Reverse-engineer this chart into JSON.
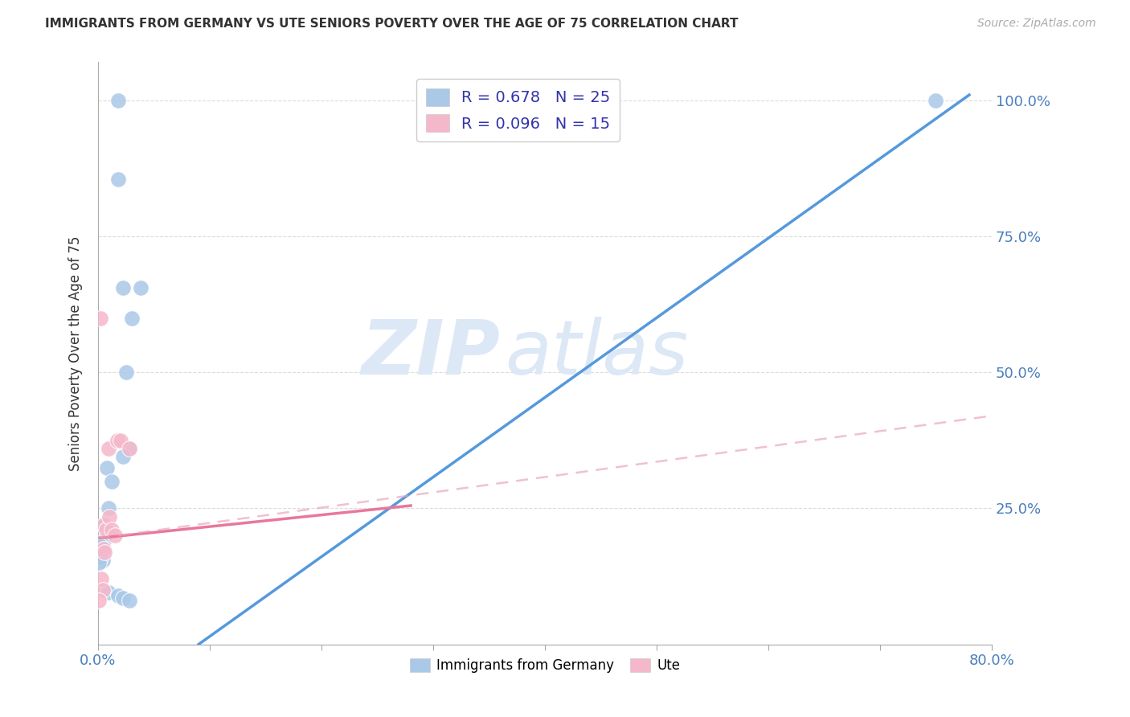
{
  "title": "IMMIGRANTS FROM GERMANY VS UTE SENIORS POVERTY OVER THE AGE OF 75 CORRELATION CHART",
  "source": "Source: ZipAtlas.com",
  "ylabel": "Seniors Poverty Over the Age of 75",
  "xlim": [
    0.0,
    0.8
  ],
  "ylim": [
    0.0,
    1.07
  ],
  "yticks_right": [
    0.25,
    0.5,
    0.75,
    1.0
  ],
  "ytick_right_labels": [
    "25.0%",
    "50.0%",
    "75.0%",
    "100.0%"
  ],
  "blue_scatter_x": [
    0.018,
    0.018,
    0.022,
    0.03,
    0.025,
    0.008,
    0.012,
    0.009,
    0.006,
    0.005,
    0.003,
    0.003,
    0.004,
    0.004,
    0.028,
    0.022,
    0.038,
    0.009,
    0.018,
    0.022,
    0.028,
    0.75,
    0.003,
    0.002,
    0.001
  ],
  "blue_scatter_y": [
    1.0,
    0.855,
    0.655,
    0.6,
    0.5,
    0.325,
    0.3,
    0.25,
    0.22,
    0.19,
    0.175,
    0.17,
    0.165,
    0.155,
    0.36,
    0.345,
    0.655,
    0.095,
    0.09,
    0.085,
    0.08,
    1.0,
    0.18,
    0.16,
    0.15
  ],
  "pink_scatter_x": [
    0.002,
    0.005,
    0.007,
    0.009,
    0.01,
    0.012,
    0.015,
    0.017,
    0.02,
    0.028,
    0.005,
    0.006,
    0.003,
    0.004,
    0.001
  ],
  "pink_scatter_y": [
    0.6,
    0.22,
    0.21,
    0.36,
    0.235,
    0.21,
    0.2,
    0.375,
    0.375,
    0.36,
    0.175,
    0.17,
    0.12,
    0.1,
    0.08
  ],
  "blue_line_x": [
    0.09,
    0.78
  ],
  "blue_line_y": [
    0.0,
    1.01
  ],
  "pink_solid_line_x": [
    0.0,
    0.28
  ],
  "pink_solid_line_y": [
    0.195,
    0.255
  ],
  "pink_dashed_line_x": [
    0.0,
    0.8
  ],
  "pink_dashed_line_y": [
    0.195,
    0.42
  ],
  "R_blue": "0.678",
  "N_blue": "25",
  "R_pink": "0.096",
  "N_pink": "15",
  "blue_color": "#aac8e8",
  "pink_color": "#f5b8cb",
  "blue_line_color": "#5599dd",
  "pink_solid_color": "#e8789a",
  "pink_dashed_color": "#e8a0b8",
  "watermark_zip": "ZIP",
  "watermark_atlas": "atlas",
  "watermark_color": "#dce8f5",
  "scatter_size": 200
}
